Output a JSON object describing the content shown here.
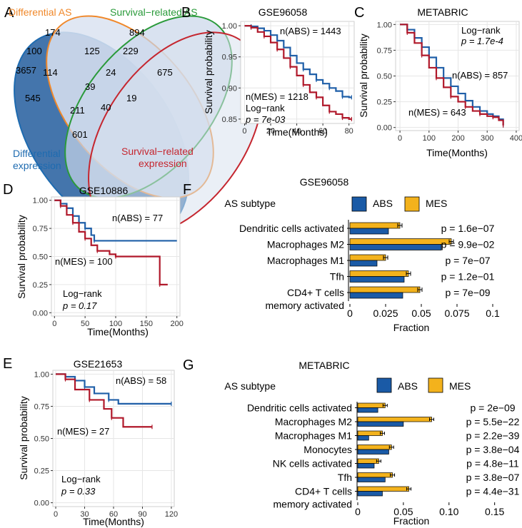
{
  "colors": {
    "abs": "#1f5fa8",
    "mes": "#b0182a",
    "abs_bar": "#1a5aa6",
    "mes_bar": "#f3b21c",
    "grid": "#e6e6e6",
    "venn_orange": "#f0882a",
    "venn_green": "#2a9a3a",
    "venn_red": "#c5262f",
    "venn_blue": "#1e6bb0",
    "venn_fill_dark": "#3a6ea8"
  },
  "panels": {
    "A": "A",
    "B": "B",
    "C": "C",
    "D": "D",
    "E": "E",
    "F": "F",
    "G": "G"
  },
  "venn": {
    "labels": {
      "differential_as": "Differential AS",
      "survival_as": "Survival−related AS",
      "diff_expr_1": "Differential",
      "diff_expr_2": "expression",
      "surv_expr_1": "Survival−related",
      "surv_expr_2": "expression"
    },
    "counts": [
      "3657",
      "174",
      "894",
      "675",
      "100",
      "125",
      "229",
      "114",
      "24",
      "39",
      "545",
      "211",
      "40",
      "19",
      "601"
    ]
  },
  "chart_data": [
    {
      "id": "B",
      "type": "line",
      "title": "GSE96058",
      "xlabel": "Time(Months)",
      "ylabel": "Survival probability",
      "xlim": [
        -3,
        84
      ],
      "ylim": [
        0.843,
        1.007
      ],
      "xticks": [
        "0",
        "20",
        "40",
        "60",
        "80"
      ],
      "xtick_values": [
        0,
        20,
        40,
        60,
        80
      ],
      "yticks": [
        "0.85",
        "0.90",
        "0.95",
        "1.00"
      ],
      "ytick_values": [
        0.85,
        0.9,
        0.95,
        1.0
      ],
      "annotations": [
        "n(ABS) = 1443",
        "n(MES) = 1218",
        "Log−rank",
        "p = 7e-03"
      ],
      "series": [
        {
          "name": "ABS",
          "x": [
            0,
            5,
            10,
            15,
            20,
            25,
            30,
            35,
            40,
            45,
            50,
            55,
            60,
            65,
            70,
            75,
            80,
            82
          ],
          "y": [
            1.0,
            0.999,
            0.996,
            0.992,
            0.985,
            0.976,
            0.965,
            0.952,
            0.94,
            0.93,
            0.922,
            0.913,
            0.907,
            0.9,
            0.895,
            0.886,
            0.885,
            0.885
          ]
        },
        {
          "name": "MES",
          "x": [
            0,
            5,
            10,
            15,
            20,
            25,
            30,
            35,
            40,
            45,
            50,
            55,
            60,
            65,
            70,
            75,
            80,
            82
          ],
          "y": [
            1.0,
            0.997,
            0.99,
            0.983,
            0.973,
            0.962,
            0.948,
            0.934,
            0.92,
            0.905,
            0.893,
            0.885,
            0.872,
            0.862,
            0.858,
            0.852,
            0.85,
            0.85
          ]
        }
      ]
    },
    {
      "id": "C",
      "type": "line",
      "title": "METABRIC",
      "xlabel": "Time(Months)",
      "ylabel": "Survival probability",
      "xlim": [
        -15,
        410
      ],
      "ylim": [
        -0.03,
        1.03
      ],
      "xticks": [
        "0",
        "100",
        "200",
        "300",
        "400"
      ],
      "xtick_values": [
        0,
        100,
        200,
        300,
        400
      ],
      "yticks": [
        "0.00",
        "0.25",
        "0.50",
        "0.75",
        "1.00"
      ],
      "ytick_values": [
        0,
        0.25,
        0.5,
        0.75,
        1.0
      ],
      "annotations": [
        "Log−rank",
        "p = 1.7e-4",
        "n(ABS) = 857",
        "n(MES) = 643"
      ],
      "series": [
        {
          "name": "ABS",
          "x": [
            0,
            25,
            50,
            75,
            100,
            125,
            150,
            175,
            200,
            225,
            250,
            275,
            300,
            320,
            340,
            355
          ],
          "y": [
            1.0,
            0.95,
            0.87,
            0.78,
            0.68,
            0.58,
            0.48,
            0.4,
            0.33,
            0.26,
            0.2,
            0.16,
            0.13,
            0.11,
            0.08,
            0.02
          ]
        },
        {
          "name": "MES",
          "x": [
            0,
            25,
            50,
            75,
            100,
            125,
            150,
            175,
            200,
            225,
            250,
            275,
            300,
            320,
            340,
            355
          ],
          "y": [
            1.0,
            0.92,
            0.82,
            0.7,
            0.58,
            0.48,
            0.39,
            0.3,
            0.25,
            0.2,
            0.16,
            0.13,
            0.11,
            0.1,
            0.07,
            0.02
          ]
        }
      ]
    },
    {
      "id": "D",
      "type": "line",
      "title": "GSE10886",
      "xlabel": "Time(Months)",
      "ylabel": "Survival probability",
      "xlim": [
        -5,
        205
      ],
      "ylim": [
        -0.03,
        1.03
      ],
      "xticks": [
        "0",
        "50",
        "100",
        "150",
        "200"
      ],
      "xtick_values": [
        0,
        50,
        100,
        150,
        200
      ],
      "yticks": [
        "0.00",
        "0.25",
        "0.50",
        "0.75",
        "1.00"
      ],
      "ytick_values": [
        0,
        0.25,
        0.5,
        0.75,
        1.0
      ],
      "annotations": [
        "n(ABS) = 77",
        "n(MES) = 100",
        "Log−rank",
        "p = 0.17"
      ],
      "series": [
        {
          "name": "ABS",
          "x": [
            0,
            10,
            20,
            30,
            40,
            50,
            60,
            65,
            200
          ],
          "y": [
            1.0,
            0.97,
            0.93,
            0.86,
            0.8,
            0.75,
            0.69,
            0.64,
            0.64
          ]
        },
        {
          "name": "MES",
          "x": [
            0,
            10,
            20,
            30,
            40,
            50,
            60,
            70,
            90,
            100,
            170,
            172,
            185
          ],
          "y": [
            1.0,
            0.95,
            0.87,
            0.8,
            0.72,
            0.66,
            0.6,
            0.55,
            0.52,
            0.5,
            0.5,
            0.25,
            0.25
          ]
        }
      ]
    },
    {
      "id": "E",
      "type": "line",
      "title": "GSE21653",
      "xlabel": "Time(Months)",
      "ylabel": "Survival probability",
      "xlim": [
        -3,
        123
      ],
      "ylim": [
        -0.03,
        1.03
      ],
      "xticks": [
        "0",
        "30",
        "60",
        "90",
        "120"
      ],
      "xtick_values": [
        0,
        30,
        60,
        90,
        120
      ],
      "yticks": [
        "0.00",
        "0.25",
        "0.50",
        "0.75",
        "1.00"
      ],
      "ytick_values": [
        0,
        0.25,
        0.5,
        0.75,
        1.0
      ],
      "annotations": [
        "n(ABS) = 58",
        "n(MES) = 27",
        "Log−rank",
        "p = 0.33"
      ],
      "series": [
        {
          "name": "ABS",
          "x": [
            0,
            10,
            20,
            30,
            40,
            55,
            65,
            120
          ],
          "y": [
            1.0,
            0.98,
            0.95,
            0.9,
            0.85,
            0.8,
            0.77,
            0.77
          ]
        },
        {
          "name": "MES",
          "x": [
            0,
            10,
            20,
            35,
            50,
            58,
            70,
            100
          ],
          "y": [
            1.0,
            0.96,
            0.88,
            0.8,
            0.73,
            0.66,
            0.59,
            0.59
          ]
        }
      ]
    },
    {
      "id": "F",
      "type": "bar",
      "title": "GSE96058",
      "legend_title": "AS subtype",
      "legend": [
        "ABS",
        "MES"
      ],
      "xlabel": "Fraction",
      "xlim": [
        0,
        0.1
      ],
      "xticks": [
        "0",
        "0.025",
        "0.05",
        "0.075",
        "0.1"
      ],
      "xtick_values": [
        0,
        0.025,
        0.05,
        0.075,
        0.1
      ],
      "categories": [
        "Dendritic cells activated",
        "Macrophages M2",
        "Macrophages M1",
        "Tfh",
        "CD4+ T cells"
      ],
      "category_line2": [
        "",
        "",
        "",
        "",
        "memory activated"
      ],
      "series": [
        {
          "name": "ABS",
          "values": [
            0.027,
            0.064,
            0.019,
            0.038,
            0.037
          ]
        },
        {
          "name": "MES",
          "values": [
            0.035,
            0.071,
            0.025,
            0.041,
            0.049
          ]
        }
      ],
      "pvalues": [
        "p = 1.6e−07",
        "p = 9.9e−02",
        "p = 7e−07",
        "p = 1.2e−01",
        "p = 7e−09"
      ]
    },
    {
      "id": "G",
      "type": "bar",
      "title": "METABRIC",
      "legend_title": "AS subtype",
      "legend": [
        "ABS",
        "MES"
      ],
      "xlabel": "Fraction",
      "xlim": [
        0,
        0.18
      ],
      "xticks": [
        "0",
        "0.05",
        "0.10",
        "0.15"
      ],
      "xtick_values": [
        0,
        0.05,
        0.1,
        0.15
      ],
      "categories": [
        "Dendritic cells activated",
        "Macrophages M2",
        "Macrophages M1",
        "Monocytes",
        "NK cells activated",
        "Tfh",
        "CD4+ T cells"
      ],
      "category_line2": [
        "",
        "",
        "",
        "",
        "",
        "",
        "memory activated"
      ],
      "series": [
        {
          "name": "ABS",
          "values": [
            0.022,
            0.05,
            0.012,
            0.034,
            0.018,
            0.03,
            0.027
          ]
        },
        {
          "name": "MES",
          "values": [
            0.03,
            0.081,
            0.027,
            0.037,
            0.023,
            0.038,
            0.056
          ]
        }
      ],
      "pvalues": [
        "p = 2e−09",
        "p = 5.5e−22",
        "p = 2.2e−39",
        "p = 3.8e−04",
        "p = 4.8e−11",
        "p = 3.8e−07",
        "p = 4.4e−31"
      ]
    }
  ]
}
